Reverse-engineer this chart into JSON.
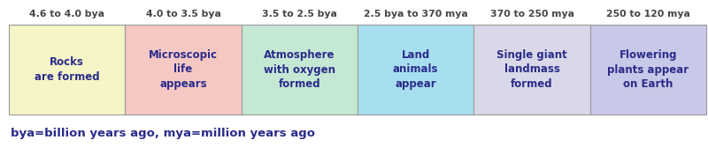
{
  "columns": [
    {
      "header": "4.6 to 4.0 bya",
      "body": "Rocks\nare formed",
      "bg_color": "#f5f5c8",
      "border_color": "#999999",
      "text_color": "#2b2b8a",
      "header_color": "#444444"
    },
    {
      "header": "4.0 to 3.5 bya",
      "body": "Microscopic\nlife\nappears",
      "bg_color": "#f5c8c4",
      "border_color": "#999999",
      "text_color": "#2b2b8a",
      "header_color": "#444444"
    },
    {
      "header": "3.5 to 2.5 bya",
      "body": "Atmosphere\nwith oxygen\nformed",
      "bg_color": "#c5e8d5",
      "border_color": "#999999",
      "text_color": "#2b2b8a",
      "header_color": "#444444"
    },
    {
      "header": "2.5 bya to 370 mya",
      "body": "Land\nanimals\nappear",
      "bg_color": "#a8dff0",
      "border_color": "#999999",
      "text_color": "#2b2b8a",
      "header_color": "#444444"
    },
    {
      "header": "370 to 250 mya",
      "body": "Single giant\nlandmass\nformed",
      "bg_color": "#d8d8e8",
      "border_color": "#999999",
      "text_color": "#2b2b8a",
      "header_color": "#444444"
    },
    {
      "header": "250 to 120 mya",
      "body": "Flowering\nplants appear\non Earth",
      "bg_color": "#c8c8e8",
      "border_color": "#999999",
      "text_color": "#2b2b8a",
      "header_color": "#444444"
    }
  ],
  "footnote": "bya=billion years ago, mya=million years ago",
  "footnote_color": "#2b2b8a",
  "background_color": "#ffffff",
  "header_fontsize": 7.8,
  "body_fontsize": 8.5,
  "footnote_fontsize": 9.5
}
